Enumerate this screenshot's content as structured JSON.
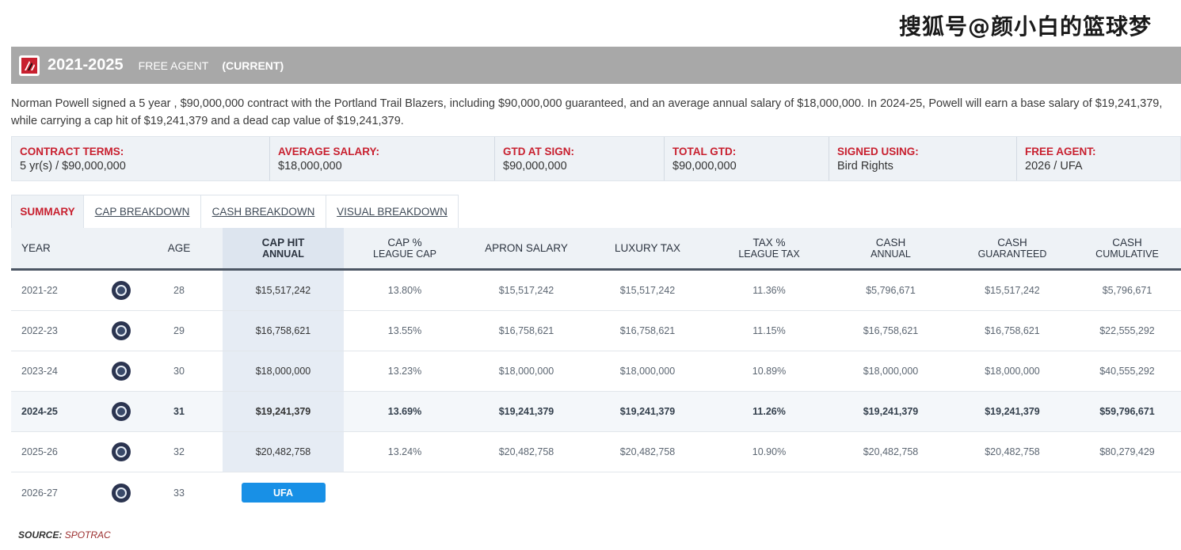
{
  "watermark": "搜狐号@颜小白的篮球梦",
  "header": {
    "years": "2021-2025",
    "type": "FREE AGENT",
    "status": "(CURRENT)"
  },
  "description_line1": "Norman Powell signed a 5 year , $90,000,000 contract with the Portland Trail Blazers, including $90,000,000 guaranteed, and an average annual salary of $18,000,000. In 2024-25, Powell will earn a base salary of $19,241,379,",
  "description_line2": "while carrying a cap hit of $19,241,379 and a dead cap value of $19,241,379.",
  "terms": [
    {
      "label": "CONTRACT TERMS:",
      "value": "5 yr(s) / $90,000,000"
    },
    {
      "label": "AVERAGE SALARY:",
      "value": "$18,000,000"
    },
    {
      "label": "GTD AT SIGN:",
      "value": "$90,000,000"
    },
    {
      "label": "TOTAL GTD:",
      "value": "$90,000,000"
    },
    {
      "label": "SIGNED USING:",
      "value": "Bird Rights"
    },
    {
      "label": "FREE AGENT:",
      "value": "2026 / UFA"
    }
  ],
  "tabs": [
    {
      "label": "SUMMARY"
    },
    {
      "label": "CAP BREAKDOWN"
    },
    {
      "label": "CASH BREAKDOWN"
    },
    {
      "label": "VISUAL BREAKDOWN"
    }
  ],
  "columns": {
    "year": "YEAR",
    "age": "AGE",
    "cap_hit": "CAP HIT",
    "cap_hit_sub": "ANNUAL",
    "cap_pct": "CAP %",
    "cap_pct_sub": "LEAGUE CAP",
    "apron": "APRON SALARY",
    "luxury": "LUXURY TAX",
    "tax_pct": "TAX %",
    "tax_pct_sub": "LEAGUE TAX",
    "cash": "CASH",
    "cash_sub": "ANNUAL",
    "cash_g": "CASH",
    "cash_g_sub": "GUARANTEED",
    "cash_c": "CASH",
    "cash_c_sub": "CUMULATIVE"
  },
  "rows": [
    {
      "year": "2021-22",
      "age": "28",
      "cap_hit": "$15,517,242",
      "cap_pct": "13.80%",
      "apron": "$15,517,242",
      "luxury": "$15,517,242",
      "tax_pct": "11.36%",
      "cash": "$5,796,671",
      "cash_g": "$15,517,242",
      "cash_c": "$5,796,671"
    },
    {
      "year": "2022-23",
      "age": "29",
      "cap_hit": "$16,758,621",
      "cap_pct": "13.55%",
      "apron": "$16,758,621",
      "luxury": "$16,758,621",
      "tax_pct": "11.15%",
      "cash": "$16,758,621",
      "cash_g": "$16,758,621",
      "cash_c": "$22,555,292"
    },
    {
      "year": "2023-24",
      "age": "30",
      "cap_hit": "$18,000,000",
      "cap_pct": "13.23%",
      "apron": "$18,000,000",
      "luxury": "$18,000,000",
      "tax_pct": "10.89%",
      "cash": "$18,000,000",
      "cash_g": "$18,000,000",
      "cash_c": "$40,555,292"
    },
    {
      "year": "2024-25",
      "age": "31",
      "cap_hit": "$19,241,379",
      "cap_pct": "13.69%",
      "apron": "$19,241,379",
      "luxury": "$19,241,379",
      "tax_pct": "11.26%",
      "cash": "$19,241,379",
      "cash_g": "$19,241,379",
      "cash_c": "$59,796,671"
    },
    {
      "year": "2025-26",
      "age": "32",
      "cap_hit": "$20,482,758",
      "cap_pct": "13.24%",
      "apron": "$20,482,758",
      "luxury": "$20,482,758",
      "tax_pct": "10.90%",
      "cash": "$20,482,758",
      "cash_g": "$20,482,758",
      "cash_c": "$80,279,429"
    }
  ],
  "last_row": {
    "year": "2026-27",
    "age": "33",
    "badge": "UFA"
  },
  "source": {
    "label": "SOURCE:",
    "name": "SPOTRAC"
  },
  "colors": {
    "accent_red": "#c8202f",
    "header_gray": "#a8a8a8",
    "ufa_blue": "#1890e6"
  }
}
